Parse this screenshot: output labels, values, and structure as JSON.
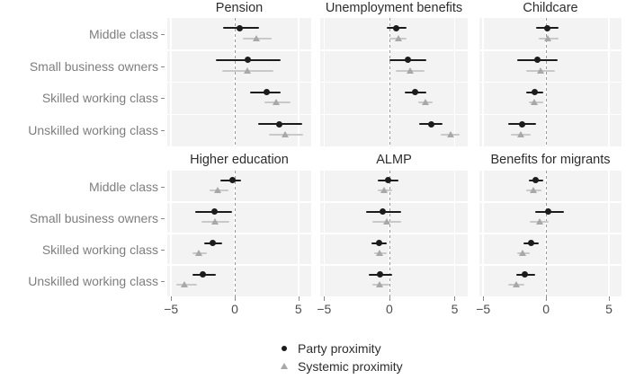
{
  "legend": {
    "items": [
      {
        "label": "Party proximity",
        "marker": "circle-icon",
        "color": "#1c1c1c"
      },
      {
        "label": "Systemic proximity",
        "marker": "triangle-icon",
        "color": "#a8a8a8"
      }
    ]
  },
  "chart_data": {
    "type": "scatter",
    "subtype": "faceted-dot-whisker-coefficient-plot",
    "grid": "on",
    "legend_position": "bottom-center",
    "categories": [
      "Middle class",
      "Small business owners",
      "Skilled working class",
      "Unskilled working class"
    ],
    "series": [
      {
        "name": "Party proximity",
        "marker": "circle",
        "color": "#1c1c1c",
        "ci_color": "#1c1c1c"
      },
      {
        "name": "Systemic proximity",
        "marker": "triangle",
        "color": "#a8a8a8",
        "ci_color": "#c9c9c9"
      }
    ],
    "x_axis": {
      "ticks": [
        -5,
        0,
        5
      ],
      "tick_labels": [
        "−5",
        "0",
        "5"
      ],
      "range": [
        -5.3,
        6.0
      ],
      "zero_reference_line": "dashed"
    },
    "panels": [
      {
        "title": "Pension",
        "rows": [
          {
            "category": "Middle class",
            "party": [
              -0.9,
              0.4,
              1.9
            ],
            "systemic": [
              0.6,
              1.7,
              2.9
            ]
          },
          {
            "category": "Small business owners",
            "party": [
              -1.5,
              1.0,
              3.6
            ],
            "systemic": [
              -1.0,
              1.0,
              3.0
            ]
          },
          {
            "category": "Skilled working class",
            "party": [
              1.2,
              2.5,
              3.6
            ],
            "systemic": [
              2.3,
              3.3,
              4.4
            ]
          },
          {
            "category": "Unskilled working class",
            "party": [
              1.8,
              3.5,
              5.3
            ],
            "systemic": [
              2.7,
              4.0,
              5.4
            ]
          }
        ]
      },
      {
        "title": "Unemployment benefits",
        "rows": [
          {
            "category": "Middle class",
            "party": [
              -0.2,
              0.5,
              1.3
            ],
            "systemic": [
              0.0,
              0.7,
              1.3
            ]
          },
          {
            "category": "Small business owners",
            "party": [
              0.0,
              1.4,
              2.8
            ],
            "systemic": [
              0.5,
              1.6,
              2.7
            ]
          },
          {
            "category": "Skilled working class",
            "party": [
              1.2,
              2.0,
              2.8
            ],
            "systemic": [
              2.2,
              2.8,
              3.3
            ]
          },
          {
            "category": "Unskilled working class",
            "party": [
              2.3,
              3.2,
              4.1
            ],
            "systemic": [
              3.9,
              4.7,
              5.4
            ]
          }
        ]
      },
      {
        "title": "Childcare",
        "rows": [
          {
            "category": "Middle class",
            "party": [
              -0.8,
              0.1,
              1.0
            ],
            "systemic": [
              -0.6,
              0.2,
              1.0
            ]
          },
          {
            "category": "Small business owners",
            "party": [
              -2.3,
              -0.7,
              0.9
            ],
            "systemic": [
              -1.6,
              -0.4,
              0.7
            ]
          },
          {
            "category": "Skilled working class",
            "party": [
              -1.6,
              -0.9,
              -0.2
            ],
            "systemic": [
              -1.4,
              -0.9,
              -0.2
            ]
          },
          {
            "category": "Unskilled working class",
            "party": [
              -3.0,
              -1.9,
              -0.8
            ],
            "systemic": [
              -2.8,
              -2.0,
              -1.2
            ]
          }
        ]
      },
      {
        "title": "Higher education",
        "rows": [
          {
            "category": "Middle class",
            "party": [
              -1.1,
              -0.2,
              0.5
            ],
            "systemic": [
              -2.0,
              -1.3,
              -0.5
            ]
          },
          {
            "category": "Small business owners",
            "party": [
              -3.1,
              -1.6,
              -0.2
            ],
            "systemic": [
              -2.6,
              -1.5,
              -0.4
            ]
          },
          {
            "category": "Skilled working class",
            "party": [
              -2.4,
              -1.7,
              -1.0
            ],
            "systemic": [
              -3.3,
              -2.8,
              -2.2
            ]
          },
          {
            "category": "Unskilled working class",
            "party": [
              -3.3,
              -2.5,
              -1.5
            ],
            "systemic": [
              -4.6,
              -3.9,
              -3.0
            ]
          }
        ]
      },
      {
        "title": "ALMP",
        "rows": [
          {
            "category": "Middle class",
            "party": [
              -0.9,
              -0.1,
              0.7
            ],
            "systemic": [
              -0.9,
              -0.4,
              0.2
            ]
          },
          {
            "category": "Small business owners",
            "party": [
              -1.8,
              -0.5,
              0.9
            ],
            "systemic": [
              -1.3,
              -0.2,
              0.9
            ]
          },
          {
            "category": "Skilled working class",
            "party": [
              -1.4,
              -0.8,
              -0.2
            ],
            "systemic": [
              -1.2,
              -0.7,
              -0.2
            ]
          },
          {
            "category": "Unskilled working class",
            "party": [
              -1.6,
              -0.7,
              0.2
            ],
            "systemic": [
              -1.3,
              -0.7,
              0.0
            ]
          }
        ]
      },
      {
        "title": "Benefits for migrants",
        "rows": [
          {
            "category": "Middle class",
            "party": [
              -1.4,
              -0.8,
              -0.2
            ],
            "systemic": [
              -1.6,
              -1.0,
              -0.4
            ]
          },
          {
            "category": "Small business owners",
            "party": [
              -0.9,
              0.2,
              1.4
            ],
            "systemic": [
              -1.3,
              -0.5,
              0.2
            ]
          },
          {
            "category": "Skilled working class",
            "party": [
              -1.8,
              -1.2,
              -0.6
            ],
            "systemic": [
              -2.3,
              -1.8,
              -1.3
            ]
          },
          {
            "category": "Unskilled working class",
            "party": [
              -2.4,
              -1.7,
              -0.9
            ],
            "systemic": [
              -3.0,
              -2.3,
              -1.7
            ]
          }
        ]
      }
    ]
  }
}
